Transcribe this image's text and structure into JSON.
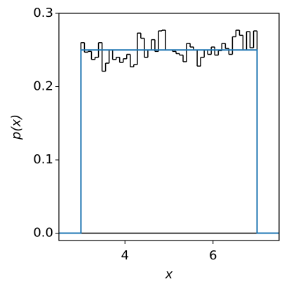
{
  "chart_data": {
    "type": "histogram",
    "xlabel": "x",
    "ylabel": "p(x)",
    "xlim": [
      2.5,
      7.5
    ],
    "ylim": [
      -0.01,
      0.3
    ],
    "xticks": [
      4,
      6
    ],
    "yticks": [
      {
        "value": 0,
        "label": "0.0"
      },
      0.1,
      0.2,
      0.3
    ],
    "series": [
      {
        "type": "histogram",
        "color": "#000000",
        "bins": [
          3,
          3.08,
          3.16,
          3.24,
          3.32,
          3.4,
          3.48,
          3.56,
          3.64,
          3.72,
          3.8,
          3.88,
          3.96,
          4.04,
          4.12,
          4.2,
          4.28,
          4.36,
          4.44,
          4.52,
          4.6,
          4.68,
          4.76,
          4.84,
          4.92,
          5,
          5.08,
          5.16,
          5.24,
          5.32,
          5.4,
          5.48,
          5.56,
          5.64,
          5.72,
          5.8,
          5.88,
          5.96,
          6.04,
          6.12,
          6.2,
          6.28,
          6.36,
          6.44,
          6.52,
          6.6,
          6.68,
          6.76,
          6.84,
          6.92,
          7
        ],
        "values": [
          0.26,
          0.247,
          0.248,
          0.237,
          0.24,
          0.26,
          0.221,
          0.232,
          0.25,
          0.237,
          0.24,
          0.233,
          0.238,
          0.244,
          0.227,
          0.23,
          0.273,
          0.266,
          0.24,
          0.25,
          0.264,
          0.248,
          0.276,
          0.277,
          0.25,
          0.25,
          0.248,
          0.245,
          0.243,
          0.234,
          0.259,
          0.254,
          0.25,
          0.228,
          0.24,
          0.25,
          0.244,
          0.254,
          0.243,
          0.249,
          0.259,
          0.252,
          0.244,
          0.268,
          0.277,
          0.27,
          0.25,
          0.275,
          0.253,
          0.276
        ]
      },
      {
        "type": "line",
        "color": "#1f77b4",
        "x": [
          2.5,
          3,
          3,
          7,
          7,
          7.5
        ],
        "values": [
          0,
          0,
          0.25,
          0.25,
          0,
          0
        ]
      }
    ]
  }
}
